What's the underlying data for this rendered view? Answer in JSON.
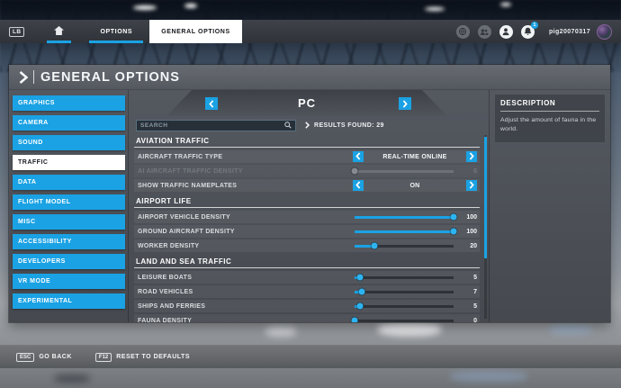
{
  "colors": {
    "accent": "#1aa2e4",
    "selected_tab_bg": "#ffffff",
    "panel_bg": "#4a4e55",
    "disabled_text": "#73787f"
  },
  "top_bar": {
    "lb_badge": "LB",
    "options_tab": "OPTIONS",
    "general_options_tab": "GENERAL OPTIONS",
    "icons": [
      "home-icon",
      "social-icon",
      "friends-icon",
      "profile-icon",
      "notifications-icon"
    ],
    "user": {
      "name": "pig20070317",
      "notification_count": "1"
    }
  },
  "header": {
    "title": "GENERAL OPTIONS"
  },
  "sidebar": {
    "items": [
      {
        "label": "GRAPHICS",
        "selected": false
      },
      {
        "label": "CAMERA",
        "selected": false
      },
      {
        "label": "SOUND",
        "selected": false
      },
      {
        "label": "TRAFFIC",
        "selected": true
      },
      {
        "label": "DATA",
        "selected": false
      },
      {
        "label": "FLIGHT MODEL",
        "selected": false
      },
      {
        "label": "MISC",
        "selected": false
      },
      {
        "label": "ACCESSIBILITY",
        "selected": false
      },
      {
        "label": "DEVELOPERS",
        "selected": false
      },
      {
        "label": "VR MODE",
        "selected": false
      },
      {
        "label": "EXPERIMENTAL",
        "selected": false
      }
    ]
  },
  "platform": {
    "value": "PC"
  },
  "search": {
    "placeholder": "SEARCH",
    "results_label": "RESULTS FOUND: 29"
  },
  "sections": [
    {
      "title": "AVIATION TRAFFIC",
      "rows": [
        {
          "label": "AIRCRAFT TRAFFIC TYPE",
          "type": "select",
          "value": "REAL-TIME ONLINE",
          "disabled": false
        },
        {
          "label": "AI AIRCRAFT TRAFFIC DENSITY",
          "type": "slider",
          "value": 0,
          "max": 100,
          "disabled": true
        },
        {
          "label": "SHOW TRAFFIC NAMEPLATES",
          "type": "select",
          "value": "ON",
          "disabled": false
        }
      ]
    },
    {
      "title": "AIRPORT LIFE",
      "rows": [
        {
          "label": "AIRPORT VEHICLE DENSITY",
          "type": "slider",
          "value": 100,
          "max": 100,
          "disabled": false
        },
        {
          "label": "GROUND AIRCRAFT DENSITY",
          "type": "slider",
          "value": 100,
          "max": 100,
          "disabled": false
        },
        {
          "label": "WORKER DENSITY",
          "type": "slider",
          "value": 20,
          "max": 100,
          "disabled": false
        }
      ]
    },
    {
      "title": "LAND AND SEA TRAFFIC",
      "rows": [
        {
          "label": "LEISURE BOATS",
          "type": "slider",
          "value": 5,
          "max": 100,
          "disabled": false
        },
        {
          "label": "ROAD VEHICLES",
          "type": "slider",
          "value": 7,
          "max": 100,
          "disabled": false
        },
        {
          "label": "SHIPS AND FERRIES",
          "type": "slider",
          "value": 5,
          "max": 100,
          "disabled": false
        },
        {
          "label": "FAUNA DENSITY",
          "type": "slider",
          "value": 0,
          "max": 100,
          "disabled": false
        }
      ]
    }
  ],
  "description": {
    "title": "DESCRIPTION",
    "text": "Adjust the amount of fauna in the world."
  },
  "footer": {
    "shortcuts": [
      {
        "key": "ESC",
        "label": "GO BACK"
      },
      {
        "key": "F12",
        "label": "RESET TO DEFAULTS"
      }
    ]
  }
}
